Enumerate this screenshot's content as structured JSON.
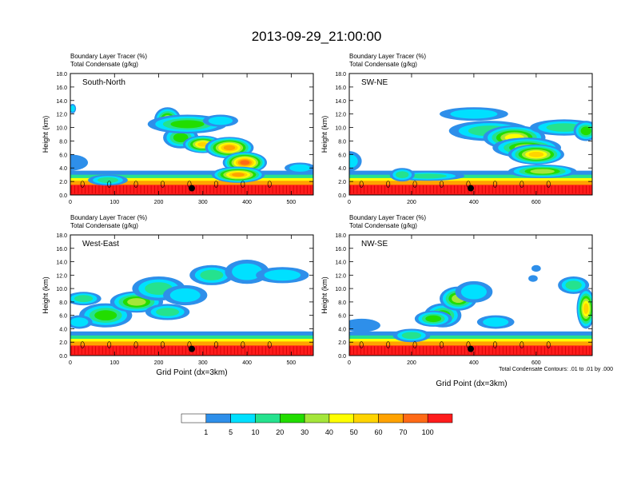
{
  "title": "2013-09-29_21:00:00",
  "colors": [
    "#ffffff",
    "#2e8fea",
    "#00e0ff",
    "#25e28e",
    "#22dd00",
    "#a4e63a",
    "#ffff00",
    "#ffd400",
    "#ffa200",
    "#ff6a16",
    "#ff1c1c"
  ],
  "colorbar_labels": [
    "1",
    "5",
    "10",
    "20",
    "30",
    "40",
    "50",
    "60",
    "70",
    "100"
  ],
  "xlabel": "Grid Point (dx=3km)",
  "contour_note": "Total Condensate Contours: .01 to .01 by .000",
  "chart_data": [
    {
      "type": "heatmap",
      "subtitle1": "Boundary Layer Tracer   (%)",
      "subtitle2": "Total Condensate   (g/kg)",
      "label": "South-North",
      "ylabel": "Height (km)",
      "ylim": [
        0,
        18
      ],
      "yticks": [
        "0.0",
        "2.0",
        "4.0",
        "6.0",
        "8.0",
        "10.0",
        "12.0",
        "14.0",
        "16.0",
        "18.0"
      ],
      "xlim": [
        0,
        550
      ],
      "xticks": [
        {
          "v": 0,
          "t": "0"
        },
        {
          "v": 100,
          "t": "100"
        },
        {
          "v": 200,
          "t": "200"
        },
        {
          "v": 300,
          "t": "300"
        },
        {
          "v": 400,
          "t": "400"
        },
        {
          "v": 500,
          "t": "500"
        }
      ],
      "marker": [
        275,
        1.0
      ],
      "blobs": [
        [
          0,
          4.8,
          40,
          1.2,
          1.5
        ],
        [
          85,
          2.2,
          45,
          0.8,
          3
        ],
        [
          5,
          12.8,
          8,
          0.7,
          2
        ],
        [
          220,
          11.2,
          30,
          1.8,
          5
        ],
        [
          250,
          8.5,
          40,
          1.6,
          4
        ],
        [
          265,
          10.5,
          90,
          1.4,
          4
        ],
        [
          300,
          7.5,
          45,
          1.3,
          7
        ],
        [
          360,
          7.0,
          55,
          1.6,
          8
        ],
        [
          395,
          4.8,
          50,
          1.6,
          9
        ],
        [
          380,
          3.0,
          60,
          1.2,
          8
        ],
        [
          520,
          4.0,
          35,
          0.8,
          2
        ],
        [
          340,
          11.0,
          40,
          0.9,
          2
        ]
      ]
    },
    {
      "type": "heatmap",
      "subtitle1": "Boundary Layer Tracer   (%)",
      "subtitle2": "Total Condensate   (g/kg)",
      "label": "SW-NE",
      "ylabel": "Height (km)",
      "ylim": [
        0,
        18
      ],
      "yticks": [
        "0.0",
        "2.0",
        "4.0",
        "6.0",
        "8.0",
        "10.0",
        "12.0",
        "14.0",
        "16.0",
        "18.0"
      ],
      "xlim": [
        0,
        780
      ],
      "xticks": [
        {
          "v": 0,
          "t": "0"
        },
        {
          "v": 200,
          "t": "200"
        },
        {
          "v": 400,
          "t": "400"
        },
        {
          "v": 600,
          "t": "600"
        }
      ],
      "marker": [
        390,
        1.0
      ],
      "blobs": [
        [
          0,
          5.0,
          40,
          1.5,
          2
        ],
        [
          400,
          12.0,
          110,
          1.0,
          2
        ],
        [
          450,
          9.5,
          130,
          1.5,
          3
        ],
        [
          530,
          8.5,
          100,
          1.8,
          6
        ],
        [
          570,
          7.0,
          110,
          1.5,
          5
        ],
        [
          600,
          6.0,
          90,
          1.5,
          7
        ],
        [
          690,
          10.0,
          110,
          1.2,
          3
        ],
        [
          760,
          9.5,
          40,
          1.5,
          4
        ],
        [
          250,
          2.8,
          120,
          0.7,
          3
        ],
        [
          620,
          3.5,
          110,
          1.0,
          5
        ],
        [
          170,
          3.0,
          40,
          1.0,
          3
        ]
      ]
    },
    {
      "type": "heatmap",
      "subtitle1": "Boundary Layer Tracer   (%)",
      "subtitle2": "Total Condensate   (g/kg)",
      "label": "West-East",
      "ylabel": "Height (km)",
      "ylim": [
        0,
        18
      ],
      "yticks": [
        "0.0",
        "2.0",
        "4.0",
        "6.0",
        "8.0",
        "10.0",
        "12.0",
        "14.0",
        "16.0",
        "18.0"
      ],
      "xlim": [
        0,
        550
      ],
      "xticks": [
        {
          "v": 0,
          "t": "0"
        },
        {
          "v": 100,
          "t": "100"
        },
        {
          "v": 200,
          "t": "200"
        },
        {
          "v": 300,
          "t": "300"
        },
        {
          "v": 400,
          "t": "400"
        },
        {
          "v": 500,
          "t": "500"
        }
      ],
      "marker": [
        275,
        1.0
      ],
      "blobs": [
        [
          30,
          8.5,
          40,
          1.0,
          3
        ],
        [
          80,
          6.0,
          60,
          1.8,
          4
        ],
        [
          150,
          8.0,
          60,
          1.6,
          5
        ],
        [
          200,
          10.0,
          60,
          1.8,
          3
        ],
        [
          260,
          9.0,
          50,
          1.5,
          2
        ],
        [
          320,
          12.0,
          50,
          1.5,
          3
        ],
        [
          220,
          6.5,
          50,
          1.2,
          3
        ],
        [
          400,
          12.5,
          50,
          1.8,
          2
        ],
        [
          480,
          12.0,
          60,
          1.2,
          2
        ],
        [
          20,
          5.0,
          30,
          1.0,
          2
        ]
      ]
    },
    {
      "type": "heatmap",
      "subtitle1": "Boundary Layer Tracer   (%)",
      "subtitle2": "Total Condensate   (g/kg)",
      "label": "NW-SE",
      "ylabel": "Height (km)",
      "ylim": [
        0,
        18
      ],
      "yticks": [
        "0.0",
        "2.0",
        "4.0",
        "6.0",
        "8.0",
        "10.0",
        "12.0",
        "14.0",
        "16.0",
        "18.0"
      ],
      "xlim": [
        0,
        780
      ],
      "xticks": [
        {
          "v": 0,
          "t": "0"
        },
        {
          "v": 200,
          "t": "200"
        },
        {
          "v": 400,
          "t": "400"
        },
        {
          "v": 600,
          "t": "600"
        }
      ],
      "marker": [
        390,
        1.0
      ],
      "blobs": [
        [
          40,
          4.5,
          60,
          1.0,
          1
        ],
        [
          300,
          6.0,
          60,
          1.8,
          4
        ],
        [
          350,
          8.5,
          60,
          1.8,
          5
        ],
        [
          400,
          9.5,
          60,
          1.6,
          2
        ],
        [
          270,
          5.5,
          60,
          1.2,
          4
        ],
        [
          200,
          3.0,
          60,
          1.0,
          3
        ],
        [
          720,
          10.5,
          50,
          1.3,
          3
        ],
        [
          760,
          7.0,
          30,
          3.0,
          7
        ],
        [
          600,
          13.0,
          15,
          0.5,
          1
        ],
        [
          590,
          11.5,
          15,
          0.5,
          1
        ],
        [
          470,
          5.0,
          60,
          1.0,
          2
        ]
      ]
    }
  ]
}
